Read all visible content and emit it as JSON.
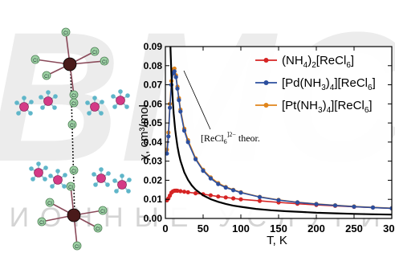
{
  "watermark": {
    "logo_text": "ВМС",
    "tagline": "ЦИОННЫЕ УСЛУГИ"
  },
  "structure": {
    "atom_label": "Cl"
  },
  "colors": {
    "nh4": "#d62424",
    "pd": "#2c4f9e",
    "pt": "#e0851c",
    "theory": "#000000",
    "watermark": "#e6e6e6",
    "cl_atom": "#9fd3a6",
    "re_atom": "#4a1a1a",
    "n_atom": "#d43a86",
    "h_atom": "#5fb6c9"
  },
  "chart_data": {
    "type": "scatter",
    "title": "",
    "xlabel": "T, K",
    "ylabel": "χ, cm³/mol",
    "xlim": [
      0,
      300
    ],
    "ylim": [
      0,
      0.09
    ],
    "xticks": [
      0,
      50,
      100,
      150,
      200,
      250,
      300
    ],
    "yticks": [
      0.0,
      0.01,
      0.02,
      0.03,
      0.04,
      0.05,
      0.06,
      0.07,
      0.08,
      0.09
    ],
    "xtick_labels": [
      "0",
      "50",
      "100",
      "150",
      "200",
      "250",
      "300"
    ],
    "ytick_labels": [
      "0.00",
      "0.01",
      "0.02",
      "0.03",
      "0.04",
      "0.05",
      "0.06",
      "0.07",
      "0.08",
      "0.09"
    ],
    "grid": false,
    "legend_position": "top-right",
    "annotation": {
      "text": "[ReCl6]2− theor.",
      "base": "[ReCl",
      "sub": "6",
      "sup": "]2−",
      "tail": " theor.",
      "points_to": [
        14,
        0.082
      ]
    },
    "series": [
      {
        "name": "(NH4)2[ReCl6]",
        "legend": {
          "pre": "(NH",
          "sub1": "4",
          "mid": ")",
          "sub2": "2",
          "post": "[ReCl",
          "sub3": "6",
          "end": "]"
        },
        "style": "markers-line",
        "color": "#d62424",
        "x": [
          2,
          4,
          6,
          8,
          10,
          12,
          14,
          16,
          20,
          25,
          30,
          40,
          50,
          60,
          70,
          80,
          90,
          100,
          125,
          150,
          175,
          200,
          225,
          250,
          275,
          300
        ],
        "y": [
          0.0095,
          0.0105,
          0.012,
          0.0135,
          0.0142,
          0.0145,
          0.0146,
          0.0145,
          0.0143,
          0.014,
          0.0137,
          0.0132,
          0.0127,
          0.0121,
          0.0115,
          0.011,
          0.0105,
          0.01,
          0.0092,
          0.0084,
          0.0077,
          0.0071,
          0.0066,
          0.0061,
          0.0057,
          0.0053
        ]
      },
      {
        "name": "[Pd(NH3)4][ReCl6]",
        "legend": {
          "pre": "[Pd(NH",
          "sub1": "3",
          "mid": ")",
          "sub2": "4",
          "post": "][ReCl",
          "sub3": "6",
          "end": "]"
        },
        "style": "markers-line",
        "color": "#2c4f9e",
        "x": [
          2,
          4,
          6,
          8,
          10,
          12,
          14,
          16,
          18,
          20,
          25,
          30,
          40,
          50,
          60,
          70,
          80,
          90,
          100,
          125,
          150,
          175,
          200,
          225,
          250,
          275,
          300
        ],
        "y": [
          0.034,
          0.043,
          0.058,
          0.07,
          0.076,
          0.077,
          0.074,
          0.068,
          0.062,
          0.056,
          0.046,
          0.04,
          0.031,
          0.025,
          0.021,
          0.018,
          0.0162,
          0.0148,
          0.0135,
          0.0112,
          0.0096,
          0.0084,
          0.0075,
          0.0068,
          0.0062,
          0.0057,
          0.0053
        ]
      },
      {
        "name": "[Pt(NH3)4][ReCl6]",
        "legend": {
          "pre": "[Pt(NH",
          "sub1": "3",
          "mid": ")",
          "sub2": "4",
          "post": "][ReCl",
          "sub3": "6",
          "end": "]"
        },
        "style": "markers-line",
        "color": "#e0851c",
        "x": [
          2,
          4,
          6,
          8,
          10,
          12,
          14,
          16,
          18,
          20,
          25,
          30,
          40,
          50,
          60,
          70,
          80,
          90,
          100,
          125,
          150,
          175,
          200,
          225,
          250,
          275,
          300
        ],
        "y": [
          0.036,
          0.045,
          0.06,
          0.072,
          0.078,
          0.0785,
          0.075,
          0.069,
          0.063,
          0.057,
          0.047,
          0.041,
          0.0315,
          0.0255,
          0.0215,
          0.0185,
          0.0165,
          0.015,
          0.0137,
          0.0113,
          0.0097,
          0.0085,
          0.0076,
          0.0069,
          0.0063,
          0.0058,
          0.0054
        ]
      },
      {
        "name": "[ReCl6]2− theor.",
        "style": "line",
        "color": "#000000",
        "x": [
          6.7,
          7,
          8,
          9,
          10,
          11,
          12,
          13,
          14,
          16,
          18,
          20,
          25,
          30,
          35,
          40,
          50,
          60,
          70,
          80,
          90,
          100,
          120,
          140,
          160,
          180,
          200,
          225,
          250,
          275,
          300
        ],
        "y": [
          0.09,
          0.086,
          0.0755,
          0.067,
          0.0605,
          0.055,
          0.0505,
          0.0465,
          0.0432,
          0.0378,
          0.0336,
          0.0302,
          0.0242,
          0.0202,
          0.0173,
          0.0151,
          0.0121,
          0.0101,
          0.0087,
          0.0076,
          0.0067,
          0.0061,
          0.005,
          0.0043,
          0.0038,
          0.0034,
          0.003,
          0.0027,
          0.0024,
          0.0022,
          0.002
        ]
      }
    ]
  }
}
